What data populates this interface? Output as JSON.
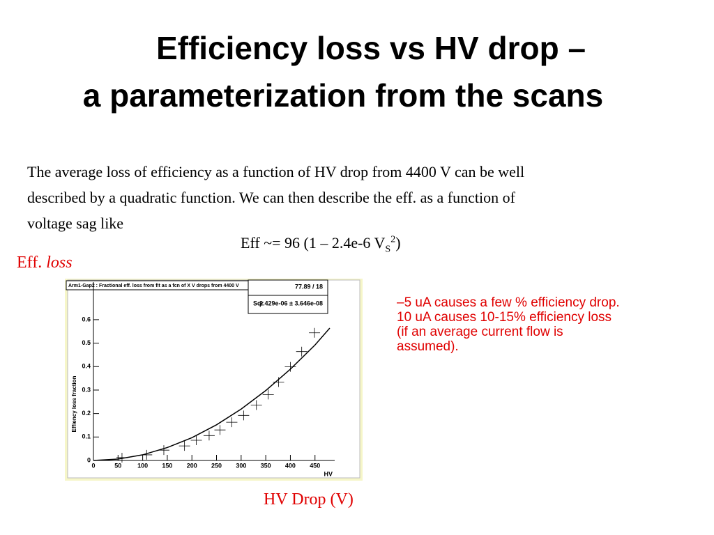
{
  "title": [
    "Efficiency loss vs HV drop –",
    "a parameterization from the scans"
  ],
  "paragraph": [
    "The average loss of efficiency as a function of HV drop from 4400 V can be well",
    "described by a quadratic function. We can then describe the eff. as a function of",
    "voltage sag like"
  ],
  "formula": {
    "main": "Eff ~= 96 (1 – 2.4e-6 V",
    "sub": "S",
    "sup": "2",
    "end": ")"
  },
  "y_caption": {
    "plain": "Eff.",
    "italic": "loss"
  },
  "x_caption": "HV Drop (V)",
  "note": [
    "–5 uA causes a few % efficiency drop.",
    "10 uA causes 10-15% efficiency loss",
    "(if an average current flow is",
    "assumed)."
  ],
  "chart_data": {
    "type": "scatter",
    "title": "Arm1-Gap2 : Fractional eff. loss from fit as a fcn of X V drops from 4400 V",
    "stats": {
      "chi2": "77.89 / 18",
      "param_name": "Sqr",
      "param_value": "2.429e-06 ± 3.646e-08"
    },
    "xlabel": "HV",
    "ylabel": "Effiency loss fraction",
    "series": [
      {
        "color": "#000000",
        "x": [
          58,
          108,
          143,
          185,
          209,
          235,
          257,
          281,
          305,
          331,
          355,
          376,
          400,
          423,
          449
        ],
        "values": [
          0.012,
          0.024,
          0.044,
          0.062,
          0.086,
          0.106,
          0.13,
          0.163,
          0.192,
          0.236,
          0.281,
          0.334,
          0.399,
          0.464,
          0.544
        ]
      }
    ],
    "fit": {
      "color": "#000000",
      "x": [
        0,
        50,
        100,
        150,
        200,
        250,
        300,
        350,
        400,
        450,
        480
      ],
      "values": [
        0,
        0.006,
        0.024,
        0.055,
        0.097,
        0.152,
        0.219,
        0.298,
        0.389,
        0.492,
        0.564
      ]
    },
    "xlim": [
      0,
      490
    ],
    "ylim": [
      0,
      0.76
    ],
    "xticks": [
      0,
      50,
      100,
      150,
      200,
      250,
      300,
      350,
      400,
      450
    ],
    "yticks": [
      0,
      0.1,
      0.2,
      0.3,
      0.4,
      0.5,
      0.6
    ]
  }
}
